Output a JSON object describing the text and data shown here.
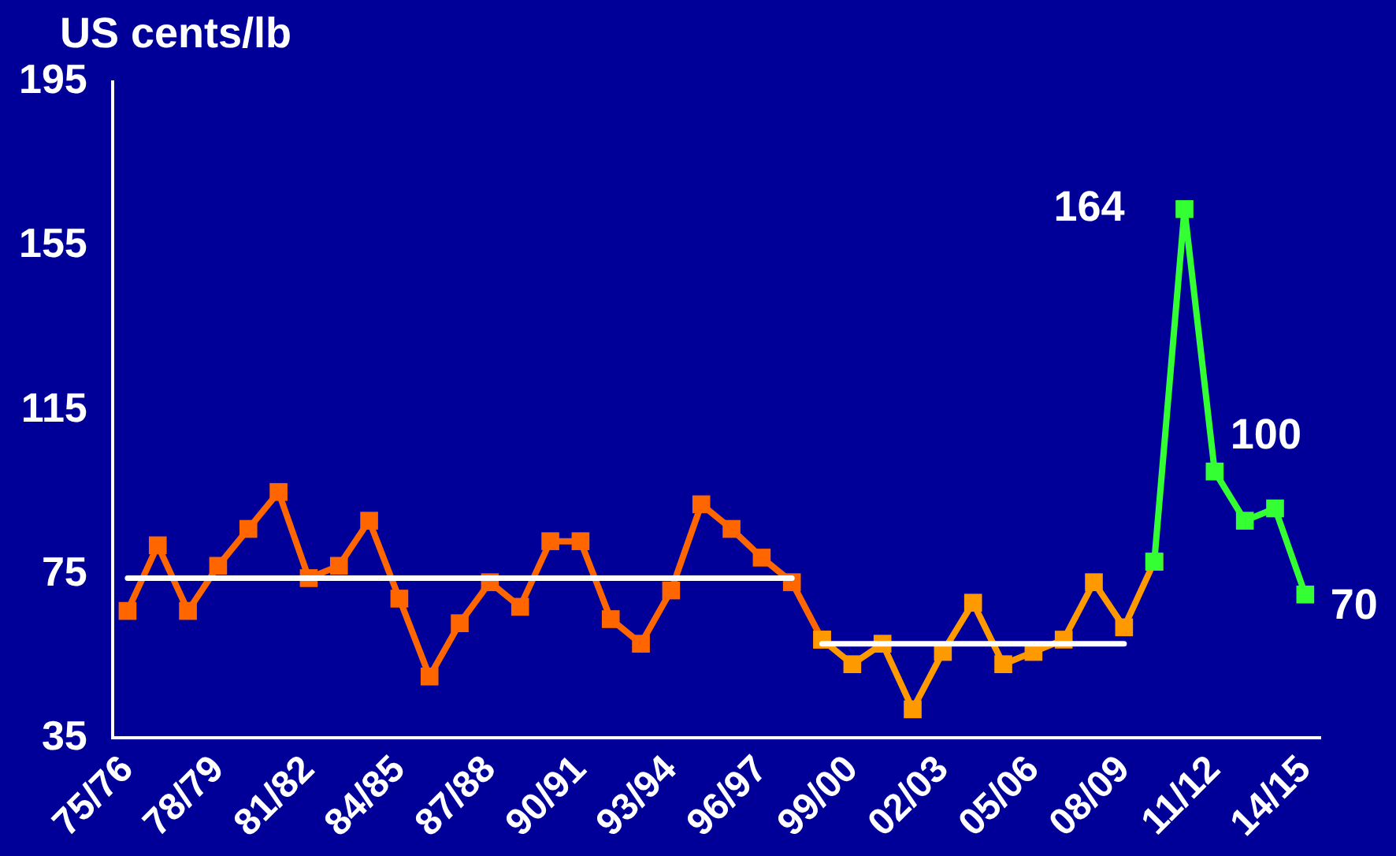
{
  "chart_data": {
    "type": "line",
    "ylabel": "US cents/lb",
    "categories": [
      "75/76",
      null,
      null,
      "78/79",
      null,
      null,
      "81/82",
      null,
      null,
      "84/85",
      null,
      null,
      "87/88",
      null,
      null,
      "90/91",
      null,
      null,
      "93/94",
      null,
      null,
      "96/97",
      null,
      null,
      "99/00",
      null,
      null,
      "02/03",
      null,
      null,
      "05/06",
      null,
      null,
      "08/09",
      null,
      null,
      "11/12",
      null,
      null,
      "14/15"
    ],
    "series": [
      {
        "color": "#ff6600",
        "values": [
          66,
          82,
          66,
          77,
          86,
          95,
          74,
          77,
          88,
          69,
          50,
          63,
          73,
          67,
          83,
          83,
          64,
          58,
          71,
          92,
          86,
          79,
          73,
          59,
          null,
          null,
          null,
          null,
          null,
          null,
          null,
          null,
          null,
          null,
          null,
          null,
          null,
          null,
          null,
          null
        ]
      },
      {
        "color": "#ff9900",
        "values": [
          null,
          null,
          null,
          null,
          null,
          null,
          null,
          null,
          null,
          null,
          null,
          null,
          null,
          null,
          null,
          null,
          null,
          null,
          null,
          null,
          null,
          null,
          null,
          59,
          53,
          58,
          42,
          56,
          68,
          53,
          56,
          59,
          73,
          62,
          78,
          null,
          null,
          null,
          null,
          null
        ]
      },
      {
        "color": "#33ff33",
        "values": [
          null,
          null,
          null,
          null,
          null,
          null,
          null,
          null,
          null,
          null,
          null,
          null,
          null,
          null,
          null,
          null,
          null,
          null,
          null,
          null,
          null,
          null,
          null,
          null,
          null,
          null,
          null,
          null,
          null,
          null,
          null,
          null,
          null,
          null,
          78,
          164,
          100,
          88,
          91,
          70
        ],
        "value_labels": [
          null,
          null,
          null,
          null,
          null,
          null,
          null,
          null,
          null,
          null,
          null,
          null,
          null,
          null,
          null,
          null,
          null,
          null,
          null,
          null,
          null,
          null,
          null,
          null,
          null,
          null,
          null,
          null,
          null,
          null,
          null,
          null,
          null,
          null,
          null,
          "164",
          "100",
          null,
          null,
          "70"
        ]
      },
      {
        "color": "#ffffff",
        "marker": "none",
        "values": [
          74,
          74,
          74,
          74,
          74,
          74,
          74,
          74,
          74,
          74,
          74,
          74,
          74,
          74,
          74,
          74,
          74,
          74,
          74,
          74,
          74,
          74,
          74,
          null,
          null,
          null,
          null,
          null,
          null,
          null,
          null,
          null,
          null,
          null,
          null,
          null,
          null,
          null,
          null,
          null
        ]
      },
      {
        "color": "#ffffff",
        "marker": "none",
        "values": [
          null,
          null,
          null,
          null,
          null,
          null,
          null,
          null,
          null,
          null,
          null,
          null,
          null,
          null,
          null,
          null,
          null,
          null,
          null,
          null,
          null,
          null,
          null,
          58,
          58,
          58,
          58,
          58,
          58,
          58,
          58,
          58,
          58,
          58,
          null,
          null,
          null,
          null,
          null,
          null
        ]
      }
    ],
    "ylim": [
      35,
      195
    ],
    "yticks": [
      35,
      75,
      115,
      155,
      195
    ],
    "grid": false,
    "legend": false,
    "marker": "square",
    "line_style": "solid"
  }
}
